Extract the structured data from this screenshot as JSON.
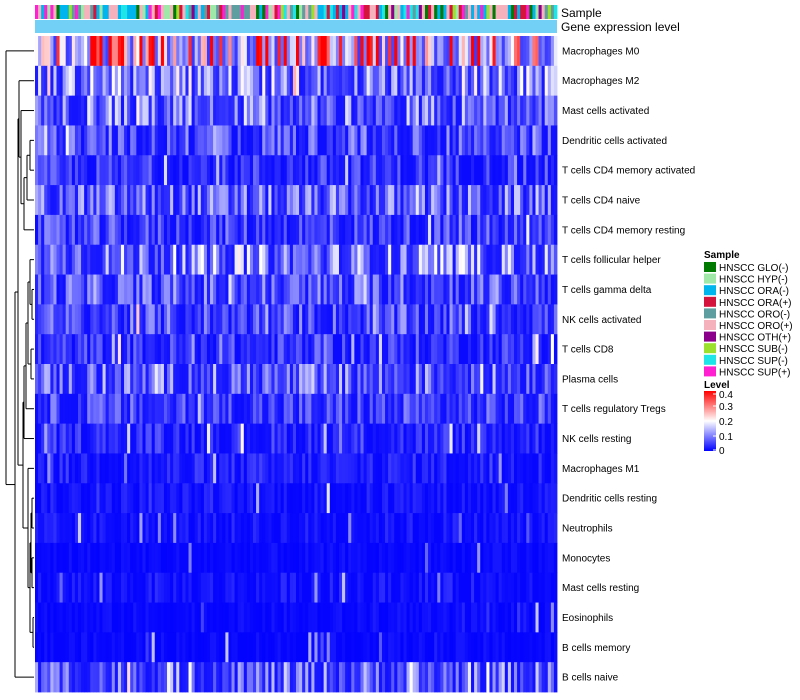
{
  "chart_data": {
    "type": "heatmap",
    "title": "",
    "annotation_labels": {
      "sample": "Sample",
      "gene_expression_level": "Gene expression level"
    },
    "rows": [
      "Macrophages M0",
      "Macrophages M2",
      "Mast cells activated",
      "Dendritic cells activated",
      "T cells CD4 memory activated",
      "T cells CD4 naive",
      "T cells CD4 memory resting",
      "T cells follicular helper",
      "T cells gamma delta",
      "NK cells activated",
      "T cells CD8",
      "Plasma cells",
      "T cells regulatory  Tregs",
      "NK cells resting",
      "Macrophages M1",
      "Dendritic cells resting",
      "Neutrophils",
      "Monocytes",
      "Mast cells resting",
      "Eosinophils",
      "B cells memory",
      "B cells naive"
    ],
    "row_mean_levels": [
      0.3,
      0.12,
      0.1,
      0.07,
      0.05,
      0.09,
      0.06,
      0.11,
      0.08,
      0.07,
      0.05,
      0.09,
      0.06,
      0.04,
      0.03,
      0.02,
      0.02,
      0.01,
      0.02,
      0.01,
      0.01,
      0.09
    ],
    "n_samples": 170,
    "sample_legend": {
      "title": "Sample",
      "items": [
        {
          "label": "HNSCC GLO(-)",
          "color": "#007a00"
        },
        {
          "label": "HNSCC HYP(-)",
          "color": "#9fe8a8"
        },
        {
          "label": "HNSCC ORA(-)",
          "color": "#00b4ee"
        },
        {
          "label": "HNSCC ORA(+)",
          "color": "#d4143c"
        },
        {
          "label": "HNSCC ORO(-)",
          "color": "#5f9ea0"
        },
        {
          "label": "HNSCC ORO(+)",
          "color": "#f5b2bd"
        },
        {
          "label": "HNSCC OTH(+)",
          "color": "#8b008b"
        },
        {
          "label": "HNSCC SUB(-)",
          "color": "#9be02c"
        },
        {
          "label": "HNSCC SUP(-)",
          "color": "#1ee5e8"
        },
        {
          "label": "HNSCC SUP(+)",
          "color": "#ff20d2"
        }
      ]
    },
    "level_legend": {
      "title": "Level",
      "ticks": [
        "0.4",
        "0.3",
        "0.2",
        "0.1",
        "0"
      ],
      "tick_values": [
        0.4,
        0.3,
        0.2,
        0.1,
        0
      ],
      "range": [
        0,
        0.4
      ],
      "colors": [
        "#0000ff",
        "#ffffff",
        "#ff0000"
      ]
    },
    "gene_expression_level_color": "#72cff5"
  }
}
